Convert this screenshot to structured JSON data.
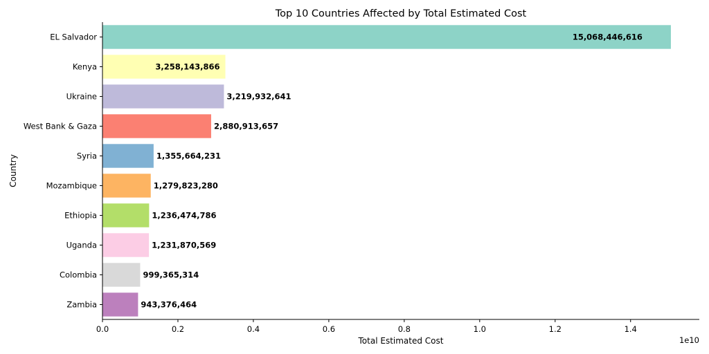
{
  "chart_data": {
    "type": "bar",
    "orientation": "horizontal",
    "title": "Top 10 Countries Affected by Total Estimated Cost",
    "xlabel": "Total Estimated Cost",
    "ylabel": "Country",
    "x_scale_note": "1e10",
    "xlim": [
      0,
      15821868947
    ],
    "x_ticks": [
      0,
      2000000000,
      4000000000,
      6000000000,
      8000000000,
      10000000000,
      12000000000,
      14000000000
    ],
    "x_tick_labels": [
      "0.0",
      "0.2",
      "0.4",
      "0.6",
      "0.8",
      "1.0",
      "1.2",
      "1.4"
    ],
    "grid": false,
    "categories": [
      "EL Salvador",
      "Kenya",
      "Ukraine",
      "West Bank & Gaza",
      "Syria",
      "Mozambique",
      "Ethiopia",
      "Uganda",
      "Colombia",
      "Zambia"
    ],
    "values": [
      15068446616,
      3258143866,
      3219932641,
      2880913657,
      1355664231,
      1279823280,
      1236474786,
      1231870569,
      999365314,
      943376464
    ],
    "value_labels": [
      "15,068,446,616",
      "3,258,143,866",
      "3,219,932,641",
      "2,880,913,657",
      "1,355,664,231",
      "1,279,823,280",
      "1,236,474,786",
      "1,231,870,569",
      "999,365,314",
      "943,376,464"
    ],
    "colors": [
      "#8dd3c7",
      "#ffffb3",
      "#bebada",
      "#fb8072",
      "#80b1d3",
      "#fdb462",
      "#b3de69",
      "#fccde5",
      "#d9d9d9",
      "#bc80bd"
    ]
  }
}
